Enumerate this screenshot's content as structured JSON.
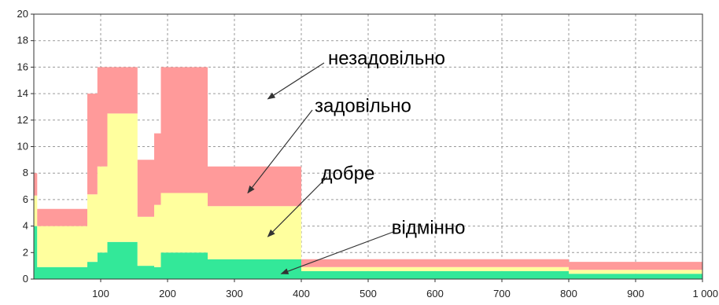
{
  "chart_data": {
    "type": "area",
    "subtype": "stacked-step",
    "title": "",
    "xlabel": "",
    "ylabel": "",
    "xlim": [
      0,
      1000
    ],
    "ylim": [
      0,
      20
    ],
    "x_ticks": [
      100,
      200,
      300,
      400,
      500,
      600,
      700,
      800,
      900,
      1000
    ],
    "x_tick_labels": [
      "100",
      "200",
      "300",
      "400",
      "500",
      "600",
      "700",
      "800",
      "900",
      "1 000"
    ],
    "y_ticks": [
      0,
      2,
      4,
      6,
      8,
      10,
      12,
      14,
      16,
      18,
      20
    ],
    "grid": true,
    "x_edges": [
      0,
      5,
      65,
      80,
      95,
      110,
      130,
      155,
      180,
      190,
      210,
      235,
      260,
      280,
      300,
      400,
      800,
      1000
    ],
    "series": [
      {
        "name": "відмінно",
        "color": "#33e899",
        "values": [
          4.0,
          0.9,
          0.9,
          1.3,
          2.0,
          2.8,
          2.8,
          1.0,
          0.9,
          2.0,
          2.0,
          2.0,
          1.5,
          1.5,
          1.5,
          0.6,
          0.4
        ]
      },
      {
        "name": "добре",
        "color": "#ffff9e",
        "values": [
          2.3,
          3.1,
          3.1,
          5.1,
          6.5,
          9.7,
          9.7,
          3.7,
          4.7,
          4.5,
          4.5,
          4.5,
          4.0,
          4.0,
          4.0,
          0.3,
          0.3
        ]
      },
      {
        "name": "задовільно",
        "color": "#fcffb8",
        "values": [
          0.0,
          0.0,
          0.0,
          0.0,
          0.0,
          0.0,
          0.0,
          0.0,
          0.0,
          0.0,
          0.0,
          0.0,
          0.0,
          0.0,
          0.0,
          0.0,
          0.0
        ]
      },
      {
        "name": "незадовільно",
        "color": "#ff9a9a",
        "values": [
          1.7,
          1.3,
          1.3,
          7.6,
          7.5,
          3.5,
          3.5,
          4.3,
          5.4,
          9.5,
          9.5,
          9.5,
          3.0,
          3.0,
          3.0,
          0.6,
          0.6
        ]
      }
    ],
    "annotations": [
      {
        "text": "незадовільно",
        "x": 440,
        "y": 16.2,
        "arrow_to": [
          350,
          13.6
        ]
      },
      {
        "text": "задовільно",
        "x": 420,
        "y": 12.6,
        "arrow_to": [
          320,
          6.5
        ]
      },
      {
        "text": "добре",
        "x": 430,
        "y": 7.5,
        "arrow_to": [
          350,
          3.2
        ]
      },
      {
        "text": "відмінно",
        "x": 535,
        "y": 3.4,
        "arrow_to": [
          370,
          0.4
        ]
      }
    ]
  }
}
